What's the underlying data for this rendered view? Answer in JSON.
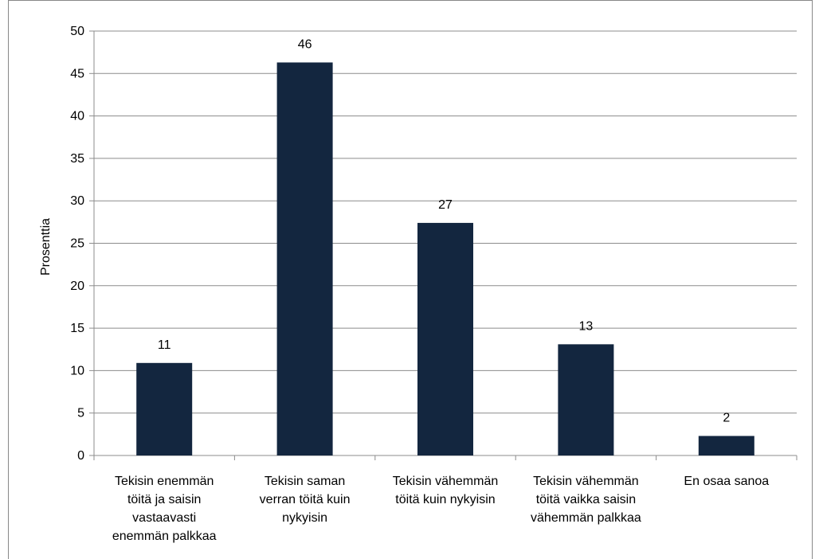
{
  "chart_data": {
    "type": "bar",
    "title": "",
    "xlabel": "",
    "ylabel": "Prosenttia",
    "ylim": [
      0,
      50
    ],
    "ytick_step": 5,
    "grid": true,
    "bar_color": "#13263f",
    "categories": [
      [
        "Tekisin enemmän",
        "töitä ja saisin",
        "vastaavasti",
        "enemmän palkkaa"
      ],
      [
        "Tekisin saman",
        "verran töitä kuin",
        "nykyisin"
      ],
      [
        "Tekisin vähemmän",
        "töitä kuin nykyisin"
      ],
      [
        "Tekisin vähemmän",
        "töitä vaikka saisin",
        "vähemmän palkkaa"
      ],
      [
        "En osaa sanoa"
      ]
    ],
    "values": [
      10.9,
      46.3,
      27.4,
      13.1,
      2.3
    ],
    "data_labels": [
      "11",
      "46",
      "27",
      "13",
      "2"
    ]
  }
}
